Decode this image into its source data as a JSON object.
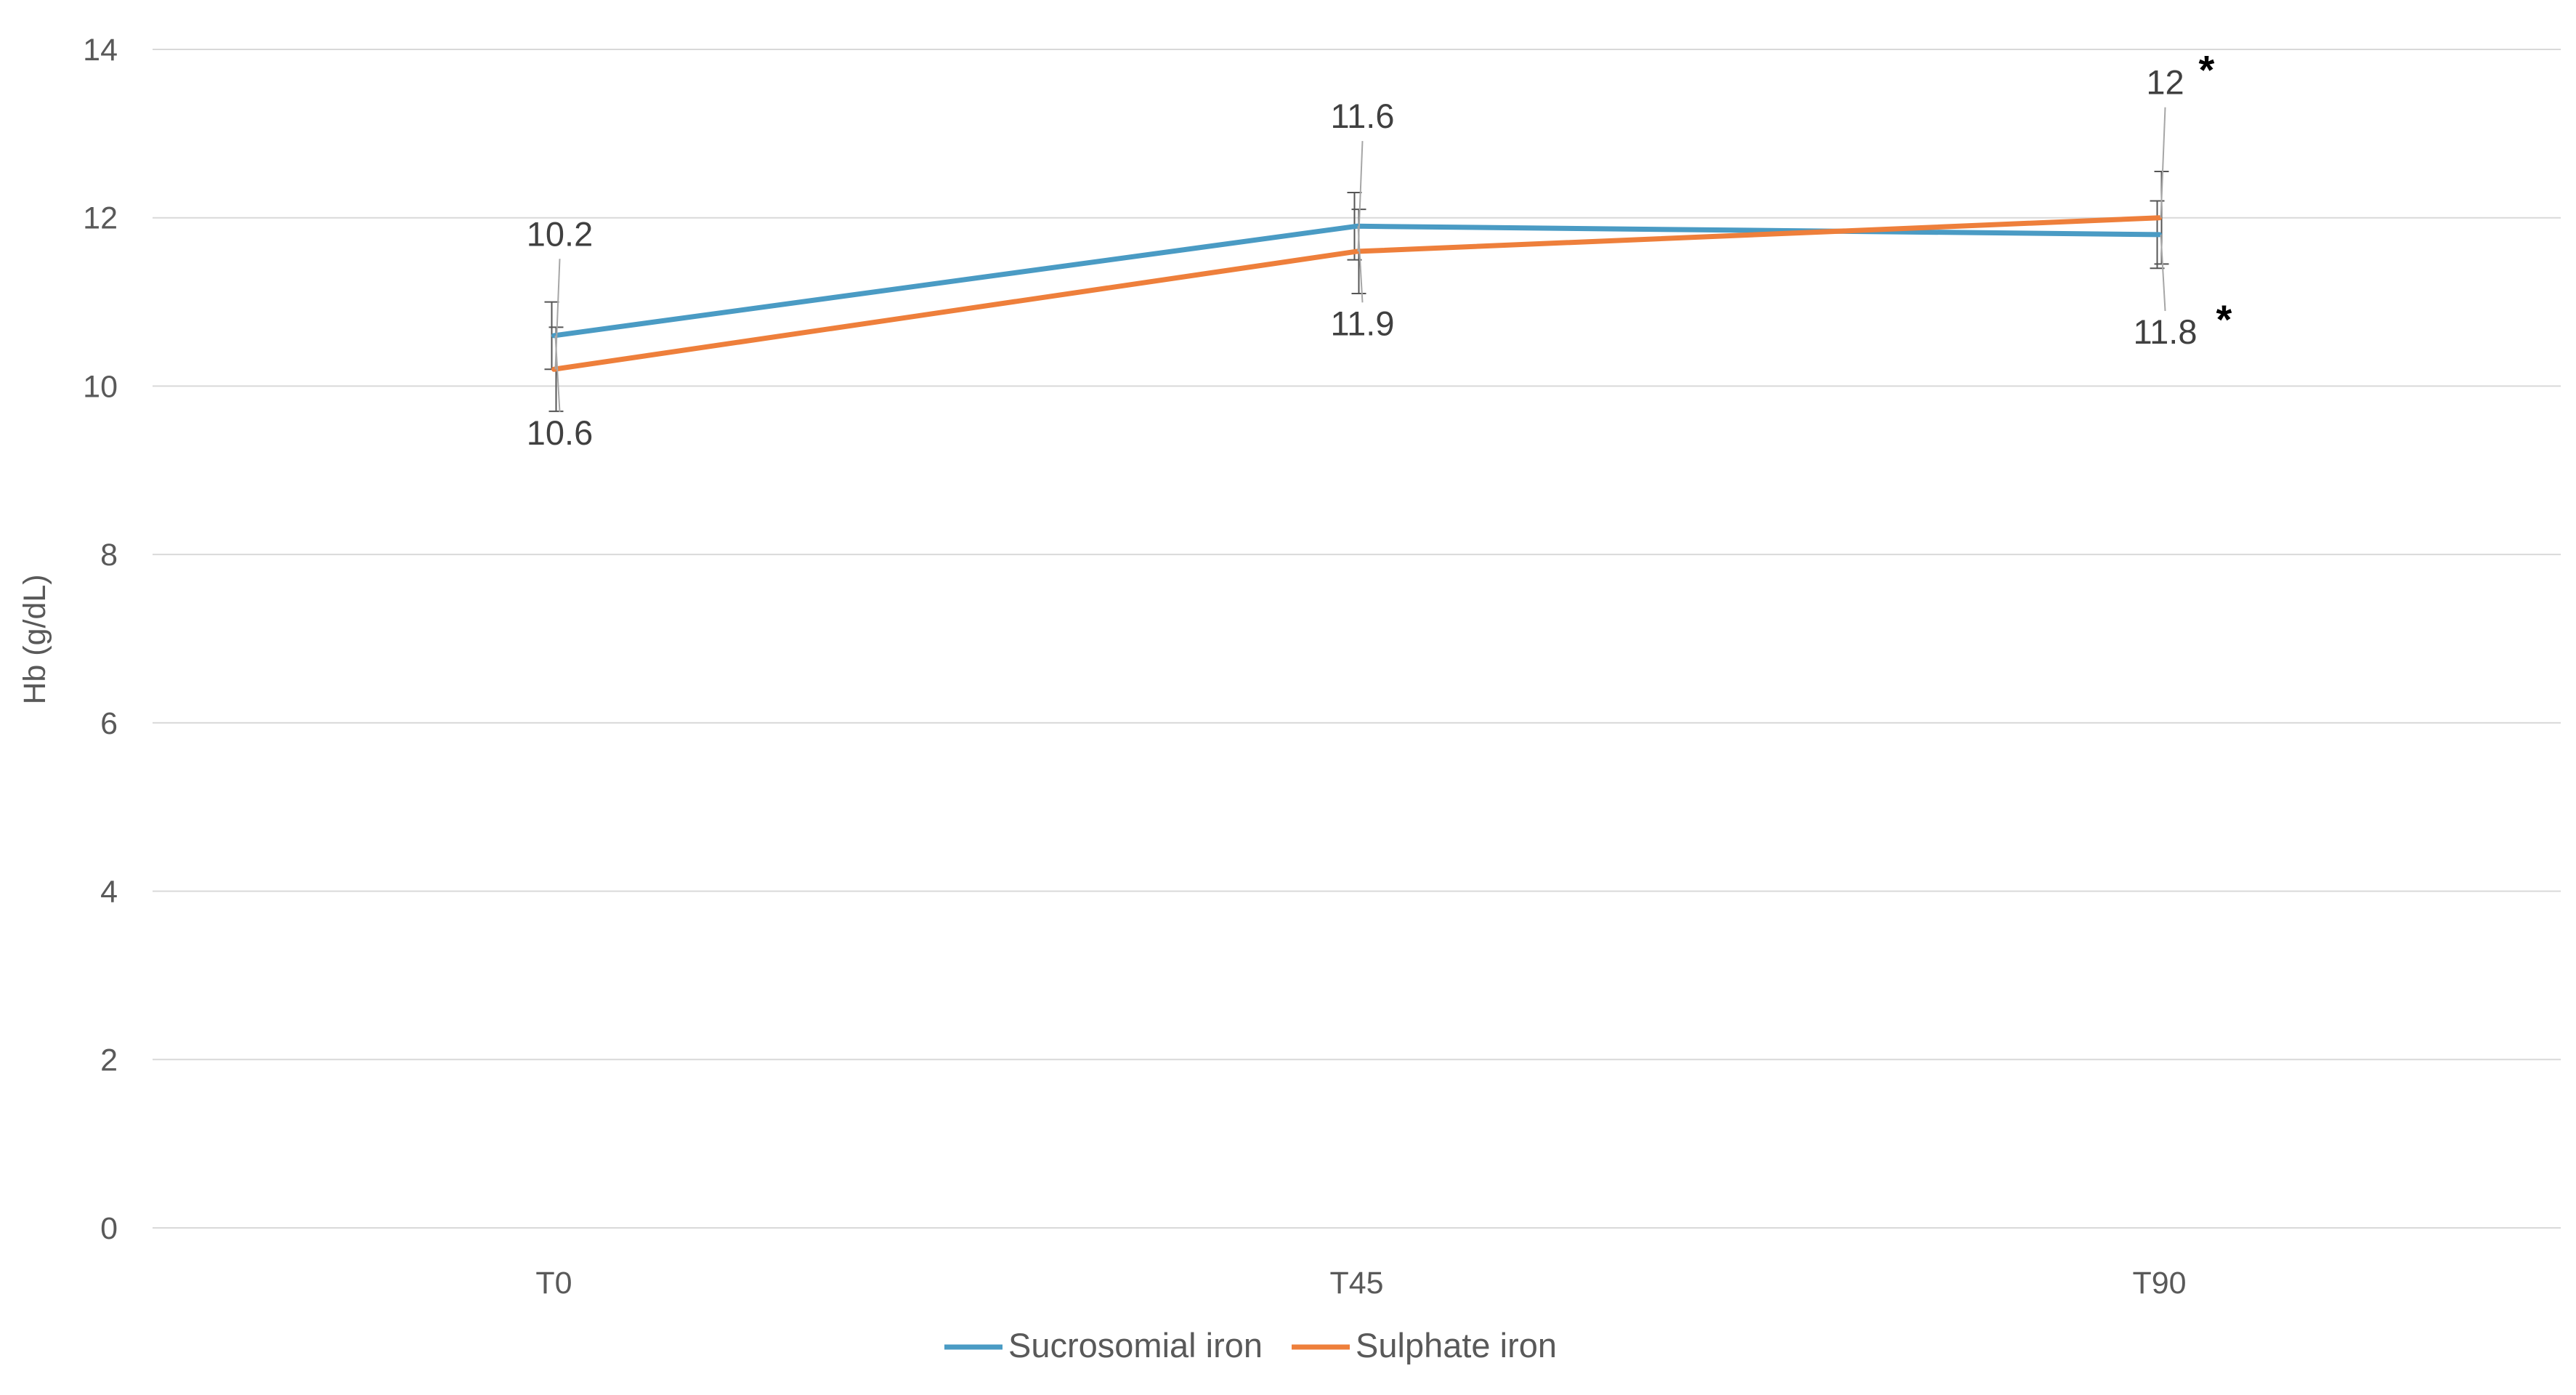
{
  "chart_data": {
    "type": "line",
    "title": "",
    "xlabel": "",
    "ylabel": "Hb (g/dL)",
    "categories": [
      "T0",
      "T45",
      "T90"
    ],
    "ylim": [
      0,
      14
    ],
    "yticks": [
      0,
      2,
      4,
      6,
      8,
      10,
      12,
      14
    ],
    "grid": true,
    "legend_position": "bottom",
    "series": [
      {
        "name": "Sucrosomial iron",
        "color": "#4a9bc4",
        "values": [
          10.6,
          11.9,
          11.8
        ],
        "error": [
          0.4,
          0.4,
          0.4
        ],
        "data_labels": [
          "10.6",
          "11.9",
          "11.8"
        ],
        "label_position": [
          "below",
          "below",
          "below"
        ],
        "significance": [
          "",
          "",
          "*"
        ]
      },
      {
        "name": "Sulphate iron",
        "color": "#ee7f3b",
        "values": [
          10.2,
          11.6,
          12.0
        ],
        "error": [
          0.5,
          0.5,
          0.55
        ],
        "data_labels": [
          "10.2",
          "11.6",
          "12"
        ],
        "label_position": [
          "above",
          "above",
          "above"
        ],
        "significance": [
          "",
          "",
          "*"
        ]
      }
    ]
  }
}
